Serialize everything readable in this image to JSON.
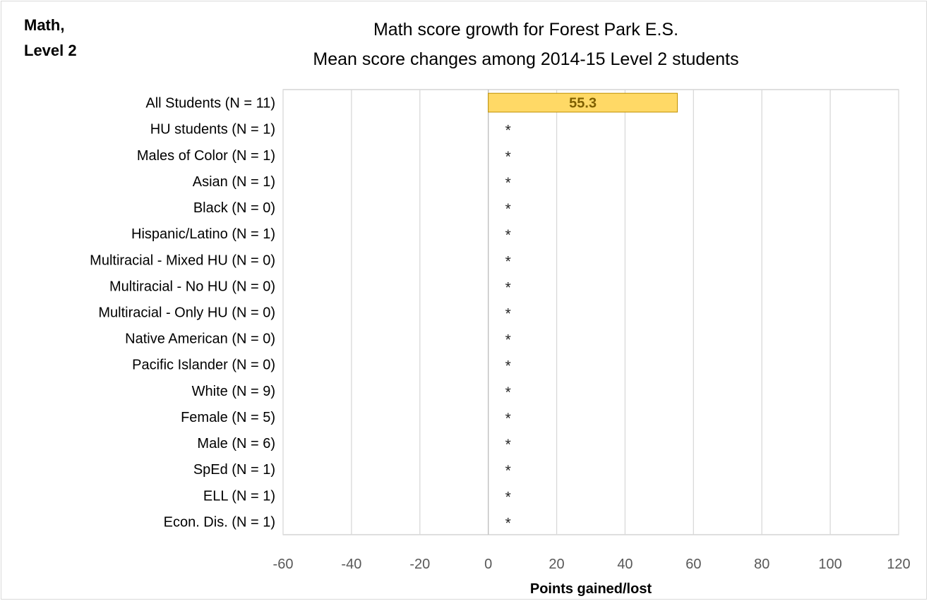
{
  "corner_label": {
    "line1": "Math,",
    "line2": "Level 2"
  },
  "chart_data": {
    "type": "bar",
    "orientation": "horizontal",
    "title": "Math score growth for Forest Park E.S.",
    "subtitle": "Mean score changes among 2014-15 Level 2 students",
    "xlabel": "Points gained/lost",
    "xlim": [
      -60,
      120
    ],
    "xticks": [
      -60,
      -40,
      -20,
      0,
      20,
      40,
      60,
      80,
      100,
      120
    ],
    "grid": true,
    "bar_color": "#ffd966",
    "bar_edge_color": "#bf9000",
    "value_label_color": "#7f6000",
    "categories": [
      "All Students (N = 11)",
      "HU students (N = 1)",
      "Males of Color (N = 1)",
      "Asian (N = 1)",
      "Black (N = 0)",
      "Hispanic/Latino (N = 1)",
      "Multiracial - Mixed HU (N = 0)",
      "Multiracial - No HU (N = 0)",
      "Multiracial - Only HU (N = 0)",
      "Native American (N = 0)",
      "Pacific Islander (N = 0)",
      "White (N = 9)",
      "Female (N = 5)",
      "Male (N = 6)",
      "SpEd (N = 1)",
      "ELL (N = 1)",
      "Econ. Dis. (N = 1)"
    ],
    "values": [
      55.3,
      null,
      null,
      null,
      null,
      null,
      null,
      null,
      null,
      null,
      null,
      null,
      null,
      null,
      null,
      null,
      null
    ],
    "data_labels": [
      "55.3",
      "*",
      "*",
      "*",
      "*",
      "*",
      "*",
      "*",
      "*",
      "*",
      "*",
      "*",
      "*",
      "*",
      "*",
      "*",
      "*"
    ]
  }
}
